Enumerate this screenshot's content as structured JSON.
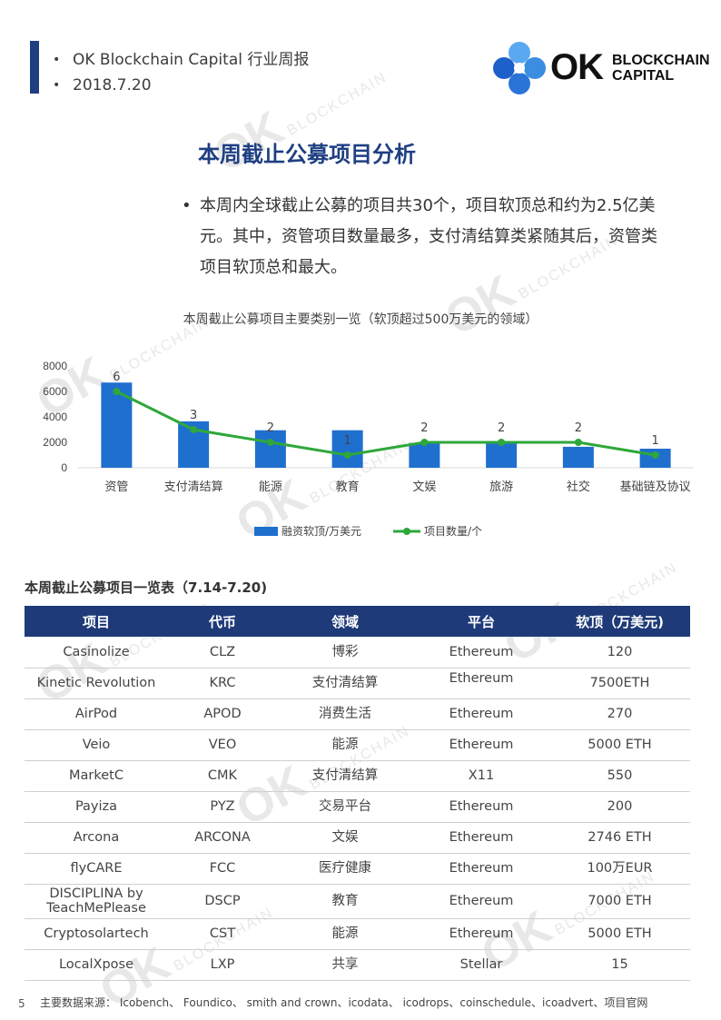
{
  "header": {
    "lines": [
      "OK Blockchain Capital 行业周报",
      "2018.7.20"
    ],
    "bullet": "•"
  },
  "logo": {
    "mark": "OK",
    "line1": "BLOCKCHAIN",
    "line2": "CAPITAL",
    "colors": [
      "#3b8de0",
      "#1e60c9",
      "#5aa9f0",
      "#2a74d8"
    ]
  },
  "watermark": {
    "big": "OK",
    "small": "BLOCKCHAIN",
    "small2": "CAPITAL"
  },
  "section": {
    "title": "本周截止公募项目分析",
    "bullet": "•",
    "summary": "本周内全球截止公募的项目共30个，项目软顶总和约为2.5亿美元。其中，资管项目数量最多，支付清结算类紧随其后，资管类项目软顶总和最大。"
  },
  "chart_title": "本周截止公募项目主要类别一览（软顶超过500万美元的领域）",
  "chart_data": {
    "type": "bar",
    "categories": [
      "资管",
      "支付清结算",
      "能源",
      "教育",
      "文娱",
      "旅游",
      "社交",
      "基础链及协议"
    ],
    "series": [
      {
        "name": "融资软顶/万美元",
        "type": "bar",
        "color": "#1f6fcf",
        "values": [
          6700,
          3650,
          2950,
          2950,
          1950,
          1900,
          1650,
          1500
        ]
      },
      {
        "name": "项目数量/个",
        "type": "line",
        "color": "#2ea83a",
        "values": [
          6,
          3,
          2,
          1,
          2,
          2,
          2,
          1
        ]
      }
    ],
    "yticks": [
      0,
      2000,
      4000,
      6000,
      8000
    ],
    "ylim": [
      0,
      8000
    ],
    "ylim_secondary": [
      0,
      8
    ]
  },
  "table": {
    "title": "本周截止公募项目一览表（7.14-7.20)",
    "headers": [
      "项目",
      "代币",
      "领域",
      "平台",
      "软顶（万美元)"
    ],
    "rows": [
      [
        "Casinolize",
        "CLZ",
        "博彩",
        "Ethereum",
        "120"
      ],
      [
        "Kinetic Revolution",
        "KRC",
        "支付清结算",
        "Ethereum",
        "7500ETH"
      ],
      [
        "AirPod",
        "APOD",
        "消费生活",
        "Ethereum",
        "270"
      ],
      [
        "Veio",
        "VEO",
        "能源",
        "Ethereum",
        "5000 ETH"
      ],
      [
        "MarketC",
        "CMK",
        "支付清结算",
        "X11",
        "550"
      ],
      [
        "Payiza",
        "PYZ",
        "交易平台",
        "Ethereum",
        "200"
      ],
      [
        "Arcona",
        "ARCONA",
        "文娱",
        "Ethereum",
        "2746 ETH"
      ],
      [
        "flyCARE",
        "FCC",
        "医疗健康",
        "Ethereum",
        "100万EUR"
      ],
      [
        "DISCIPLINA by TeachMePlease",
        "DSCP",
        "教育",
        "Ethereum",
        "7000 ETH"
      ],
      [
        "Cryptosolartech",
        "CST",
        "能源",
        "Ethereum",
        "5000 ETH"
      ],
      [
        "LocalXpose",
        "LXP",
        "共享",
        "Stellar",
        "15"
      ]
    ]
  },
  "footer": {
    "page": "5",
    "sources": "主要数据来源：   Icobench、 Foundico、  smith and crown、icodata、  icodrops、coinschedule、icoadvert、项目官网"
  }
}
